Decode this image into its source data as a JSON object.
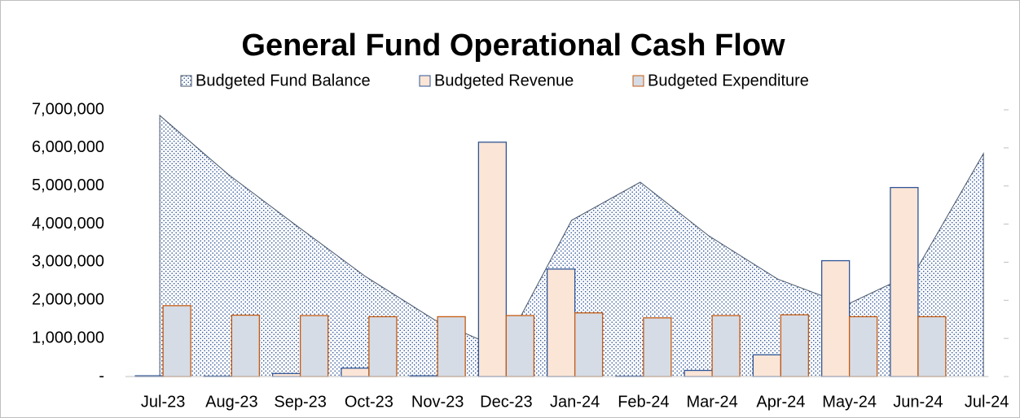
{
  "chart_data": {
    "type": "bar",
    "title": "General Fund Operational Cash Flow",
    "categories": [
      "Jul-23",
      "Aug-23",
      "Sep-23",
      "Oct-23",
      "Nov-23",
      "Dec-23",
      "Jan-24",
      "Feb-24",
      "Mar-24",
      "Apr-24",
      "May-24",
      "Jun-24",
      "Jul-24"
    ],
    "series": [
      {
        "name": "Budgeted Fund Balance",
        "type": "area",
        "color": "#44546a",
        "fill": "#dae3f3",
        "values": [
          6850000,
          5300000,
          3950000,
          2620000,
          1490000,
          700000,
          4100000,
          5100000,
          3690000,
          2560000,
          1880000,
          2730000,
          5850000
        ]
      },
      {
        "name": "Budgeted Revenue",
        "type": "bar",
        "color": "#2f5597",
        "fill": "#fbe5d6",
        "values": [
          20000,
          10000,
          80000,
          220000,
          20000,
          6150000,
          2820000,
          10000,
          160000,
          570000,
          3040000,
          4960000,
          null
        ]
      },
      {
        "name": "Budgeted Expenditure",
        "type": "bar",
        "color": "#c55a11",
        "fill": "#d6dce5",
        "values": [
          1860000,
          1610000,
          1600000,
          1570000,
          1570000,
          1600000,
          1670000,
          1540000,
          1600000,
          1620000,
          1570000,
          1570000,
          null
        ]
      }
    ],
    "ylim": [
      0,
      7000000
    ],
    "yticks": [
      {
        "value": 0,
        "label": "-"
      },
      {
        "value": 1000000,
        "label": "1,000,000"
      },
      {
        "value": 2000000,
        "label": "2,000,000"
      },
      {
        "value": 3000000,
        "label": "3,000,000"
      },
      {
        "value": 4000000,
        "label": "4,000,000"
      },
      {
        "value": 5000000,
        "label": "5,000,000"
      },
      {
        "value": 6000000,
        "label": "6,000,000"
      },
      {
        "value": 7000000,
        "label": "7,000,000"
      }
    ]
  }
}
